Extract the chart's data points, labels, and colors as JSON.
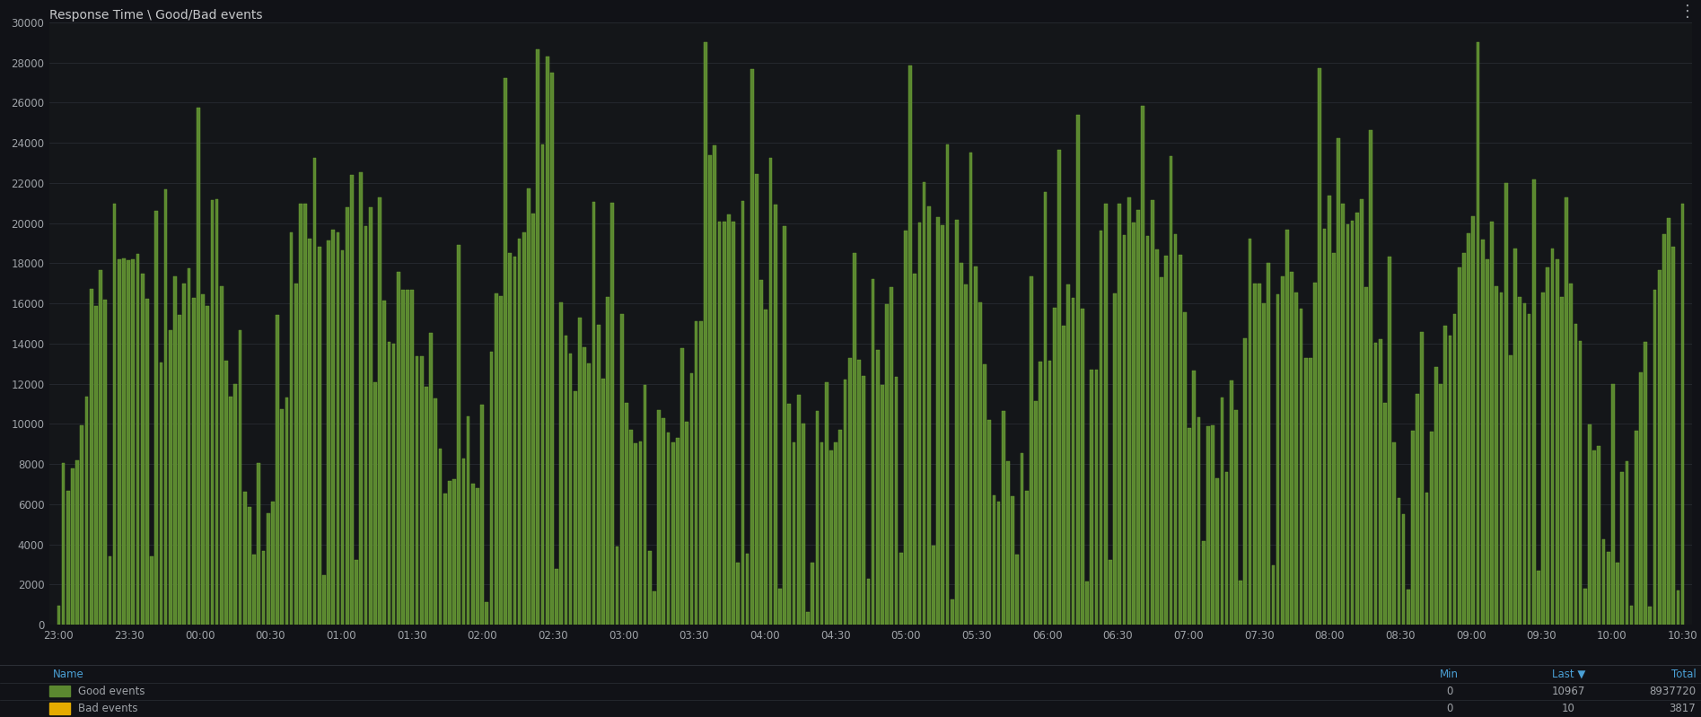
{
  "title": "Response Time \\ Good/Bad events",
  "background_color": "#111217",
  "plot_bg_color": "#141619",
  "grid_color": "#2c2f36",
  "text_color": "#9fa3a8",
  "title_color": "#c7c9cb",
  "bar_color_good": "#5b8830",
  "bar_color_good_edge": "#73ad35",
  "bar_color_bad": "#e5ac00",
  "ylim": [
    0,
    30000
  ],
  "yticks": [
    0,
    2000,
    4000,
    6000,
    8000,
    10000,
    12000,
    14000,
    16000,
    18000,
    20000,
    22000,
    24000,
    26000,
    28000,
    30000
  ],
  "x_labels": [
    "23:00",
    "23:30",
    "00:00",
    "00:30",
    "01:00",
    "01:30",
    "02:00",
    "02:30",
    "03:00",
    "03:30",
    "04:00",
    "04:30",
    "05:00",
    "05:30",
    "06:00",
    "06:30",
    "07:00",
    "07:30",
    "08:00",
    "08:30",
    "09:00",
    "09:30",
    "10:00",
    "10:30"
  ],
  "legend_items": [
    {
      "label": "Good events",
      "color": "#5b8830"
    },
    {
      "label": "Bad events",
      "color": "#e5ac00"
    }
  ],
  "legend_stats": {
    "Good events": {
      "Min": "0",
      "Last": "10967",
      "Total": "8937720"
    },
    "Bad events": {
      "Min": "0",
      "Last": "10",
      "Total": "3817"
    }
  },
  "n_bars": 350,
  "seed": 42,
  "title_fontsize": 10,
  "tick_fontsize": 8.5,
  "legend_fontsize": 8.5,
  "name_label_color": "#4a9fd4"
}
